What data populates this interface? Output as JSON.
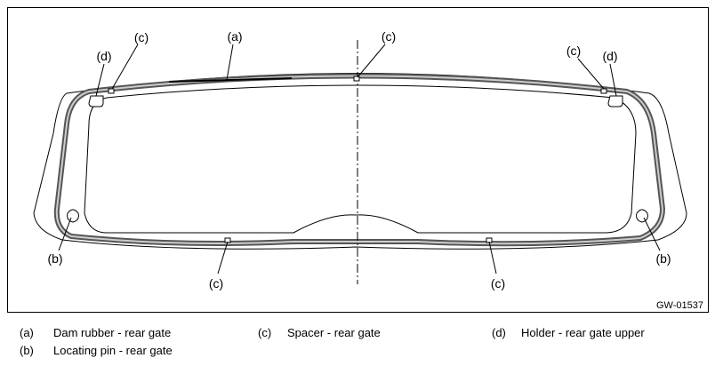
{
  "callouts": [
    {
      "label": "(c)"
    },
    {
      "label": "(a)"
    },
    {
      "label": "(c)"
    },
    {
      "label": "(d)"
    },
    {
      "label": "(c)"
    },
    {
      "label": "(d)"
    },
    {
      "label": "(b)"
    },
    {
      "label": "(c)"
    },
    {
      "label": "(c)"
    },
    {
      "label": "(b)"
    }
  ],
  "figure_code": "GW-01537",
  "legend": [
    {
      "key": "(a)",
      "text": "Dam rubber - rear gate"
    },
    {
      "key": "(c)",
      "text": "Spacer - rear gate"
    },
    {
      "key": "(d)",
      "text": "Holder - rear gate upper"
    },
    {
      "key": "(b)",
      "text": "Locating pin - rear gate"
    }
  ]
}
